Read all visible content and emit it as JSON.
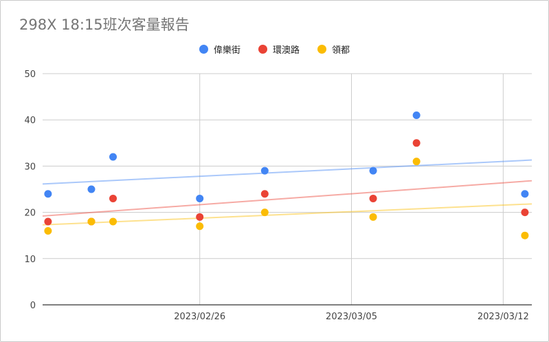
{
  "chart_data": {
    "type": "scatter",
    "title": "298X 18:15班次客量報告",
    "xlabel": "",
    "ylabel": "",
    "ylim": [
      0,
      50
    ],
    "yticks": [
      0,
      10,
      20,
      30,
      40,
      50
    ],
    "xlim": [
      "2023-02-19",
      "2023-03-13"
    ],
    "xticks": [
      {
        "value": "2023-02-26",
        "label": "2023/02/26"
      },
      {
        "value": "2023-03-05",
        "label": "2023/03/05"
      },
      {
        "value": "2023-03-12",
        "label": "2023/03/12"
      }
    ],
    "grid": true,
    "legend_position": "top",
    "trendlines": true,
    "series": [
      {
        "name": "偉樂街",
        "color": "#4285f4",
        "points": [
          {
            "x": "2023-02-19",
            "y": 24
          },
          {
            "x": "2023-02-21",
            "y": 25
          },
          {
            "x": "2023-02-22",
            "y": 32
          },
          {
            "x": "2023-02-26",
            "y": 23
          },
          {
            "x": "2023-03-01",
            "y": 29
          },
          {
            "x": "2023-03-06",
            "y": 29
          },
          {
            "x": "2023-03-08",
            "y": 41
          },
          {
            "x": "2023-03-13",
            "y": 24
          }
        ]
      },
      {
        "name": "環澳路",
        "color": "#ea4335",
        "points": [
          {
            "x": "2023-02-19",
            "y": 18
          },
          {
            "x": "2023-02-21",
            "y": 18
          },
          {
            "x": "2023-02-22",
            "y": 23
          },
          {
            "x": "2023-02-26",
            "y": 19
          },
          {
            "x": "2023-03-01",
            "y": 24
          },
          {
            "x": "2023-03-06",
            "y": 23
          },
          {
            "x": "2023-03-08",
            "y": 35
          },
          {
            "x": "2023-03-13",
            "y": 20
          }
        ]
      },
      {
        "name": "領都",
        "color": "#fbbc04",
        "points": [
          {
            "x": "2023-02-19",
            "y": 16
          },
          {
            "x": "2023-02-21",
            "y": 18
          },
          {
            "x": "2023-02-22",
            "y": 18
          },
          {
            "x": "2023-02-26",
            "y": 17
          },
          {
            "x": "2023-03-01",
            "y": 20
          },
          {
            "x": "2023-03-06",
            "y": 19
          },
          {
            "x": "2023-03-08",
            "y": 31
          },
          {
            "x": "2023-03-13",
            "y": 15
          }
        ]
      }
    ]
  }
}
